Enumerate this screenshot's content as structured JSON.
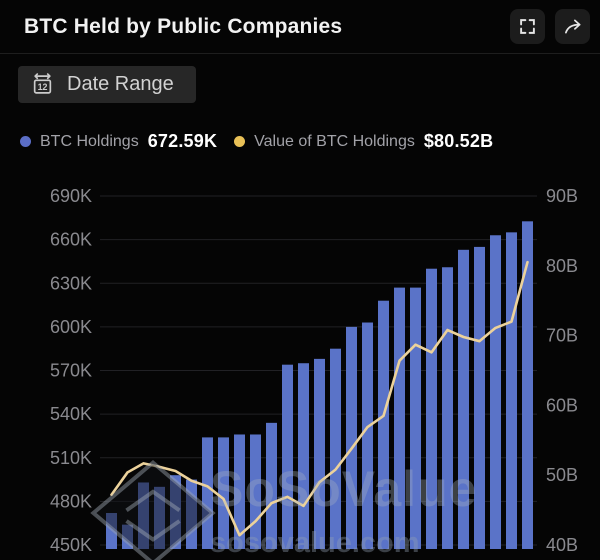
{
  "header": {
    "title": "BTC Held by Public Companies"
  },
  "toolbar": {
    "date_range_label": "Date Range",
    "icons": [
      "calendar-icon",
      "fullscreen-icon",
      "share-icon"
    ]
  },
  "legend": {
    "items": [
      {
        "label": "BTC Holdings",
        "value": "672.59K",
        "color": "#5b6ec6"
      },
      {
        "label": "Value of BTC Holdings",
        "value": "$80.52B",
        "color": "#e9c157"
      }
    ]
  },
  "watermark": {
    "brand": "SoSoValue",
    "domain": "sosovalue.com"
  },
  "colors": {
    "background": "#050505",
    "grid": "#212125",
    "axis_text": "#8a8a8f",
    "bar": "#5a73c8",
    "line": "#ecd29b",
    "title_text": "#f2f2f2",
    "button_bg": "#272727",
    "icon_button_bg": "#1c1c1c"
  },
  "chart_data": {
    "type": "bar",
    "subtype": "combo-bar-line-dual-axis",
    "title": "BTC Held by Public Companies",
    "x_labels_visible": false,
    "grid": "horizontal",
    "legend_position": "top",
    "series": [
      {
        "name": "BTC Holdings",
        "type": "bar",
        "axis": "left",
        "unit": "K BTC",
        "color": "#5a73c8",
        "current_value_label": "672.59K",
        "values": [
          472,
          464,
          493,
          490,
          498,
          495,
          524,
          524,
          526,
          526,
          534,
          574,
          575,
          578,
          585,
          600,
          603,
          618,
          627,
          627,
          640,
          641,
          653,
          655,
          663,
          665,
          672.59
        ]
      },
      {
        "name": "Value of BTC Holdings",
        "type": "line",
        "axis": "right",
        "unit": "B USD",
        "color": "#ecd29b",
        "current_value_label": "$80.52B",
        "values": [
          47.2,
          50.4,
          51.7,
          51.2,
          50.6,
          49.2,
          48.4,
          46.6,
          41.4,
          43.4,
          46.0,
          46.9,
          45.6,
          49.0,
          50.8,
          53.8,
          56.9,
          58.5,
          66.4,
          68.7,
          67.6,
          70.8,
          69.8,
          69.2,
          71.1,
          72.0,
          80.52
        ]
      }
    ],
    "left_axis": {
      "ticks": [
        "690K",
        "660K",
        "630K",
        "600K",
        "570K",
        "540K",
        "510K",
        "480K",
        "450K"
      ],
      "tick_values": [
        690,
        660,
        630,
        600,
        570,
        540,
        510,
        480,
        450
      ],
      "min": 450,
      "max": 690,
      "unit": "K"
    },
    "right_axis": {
      "ticks": [
        "90B",
        "80B",
        "70B",
        "60B",
        "50B",
        "40B"
      ],
      "tick_values": [
        90,
        80,
        70,
        60,
        50,
        40
      ],
      "min": 40,
      "max": 90,
      "unit": "B"
    }
  }
}
